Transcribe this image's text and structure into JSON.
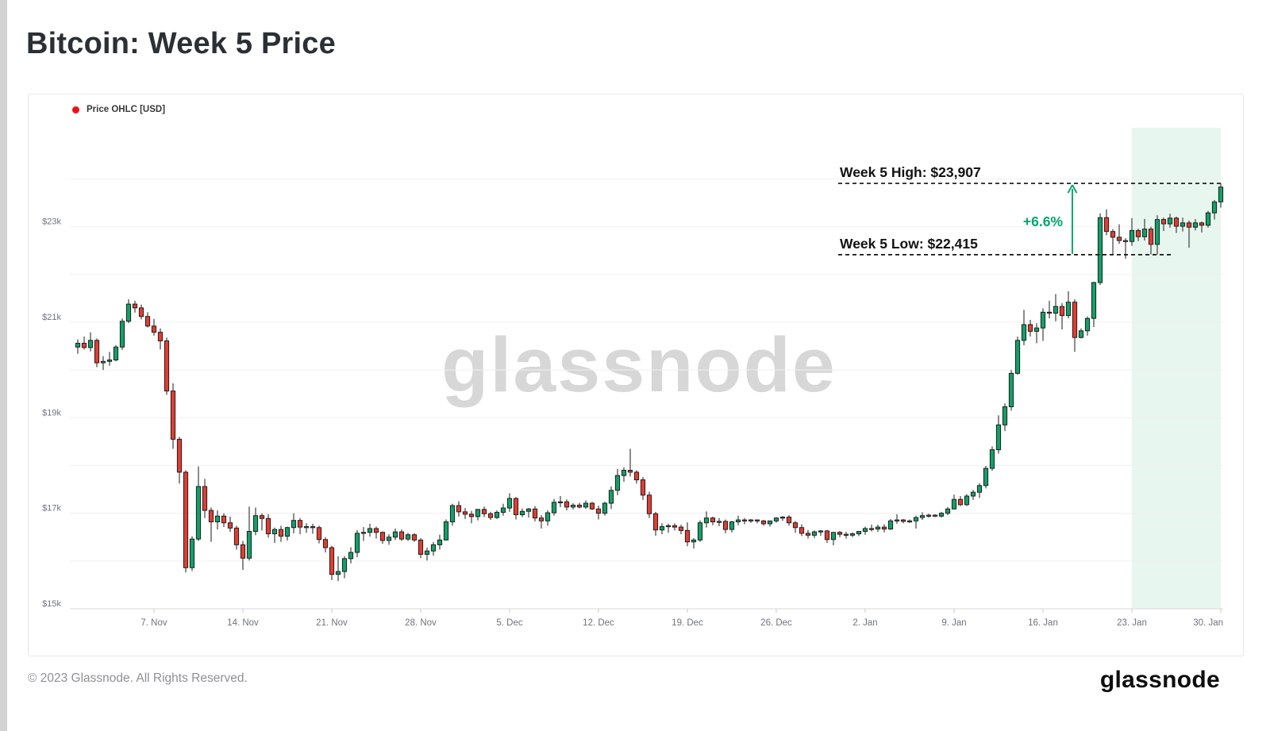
{
  "page": {
    "title": "Bitcoin: Week 5 Price",
    "watermark": "glassnode",
    "footer_copyright": "© 2023 Glassnode. All Rights Reserved.",
    "footer_logo": "glassnode"
  },
  "legend": {
    "label": "Price OHLC [USD]",
    "dot_color": "#ee1111"
  },
  "colors": {
    "up": "#10a168",
    "down": "#e53b30",
    "body_stroke": "#1f1f1f",
    "wick": "#2e2e2e",
    "band": "#e7f6ee",
    "grid": "#f0f0f0",
    "axis": "#d9d9d9",
    "tick": "#c9c9c9",
    "axis_text": "#6e737e",
    "annotation_text": "#121212",
    "accent_green": "#00a76b",
    "watermark": "#d7d7d7"
  },
  "chart_data": {
    "type": "candlestick",
    "title": "Bitcoin: Week 5 Price",
    "series_name": "Price OHLC [USD]",
    "x_start": "1. Nov",
    "x_end": "30. Jan",
    "candle_interval": "12h",
    "ylim": [
      15000,
      25080
    ],
    "grid": "horizontal, every $1k",
    "y_ticks": [
      {
        "label": "$15k",
        "value": 15000
      },
      {
        "label": "$17k",
        "value": 17000
      },
      {
        "label": "$19k",
        "value": 19000
      },
      {
        "label": "$21k",
        "value": 21000
      },
      {
        "label": "$23k",
        "value": 23000
      }
    ],
    "x_ticks": [
      {
        "label": "7. Nov",
        "index": 12
      },
      {
        "label": "14. Nov",
        "index": 26
      },
      {
        "label": "21. Nov",
        "index": 40
      },
      {
        "label": "28. Nov",
        "index": 54
      },
      {
        "label": "5. Dec",
        "index": 68
      },
      {
        "label": "12. Dec",
        "index": 82
      },
      {
        "label": "19. Dec",
        "index": 96
      },
      {
        "label": "26. Dec",
        "index": 110
      },
      {
        "label": "2. Jan",
        "index": 124
      },
      {
        "label": "9. Jan",
        "index": 138
      },
      {
        "label": "16. Jan",
        "index": 152
      },
      {
        "label": "23. Jan",
        "index": 166
      },
      {
        "label": "30. Jan",
        "index": 180
      }
    ],
    "highlight_region": {
      "label": "Week 5",
      "from_index": 166,
      "to_index": 180
    },
    "annotations": {
      "high_label": "Week 5 High: $23,907",
      "high_value": 23907,
      "low_label": "Week 5 Low: $22,415",
      "low_value": 22415,
      "change_label": "+6.6%"
    },
    "candles": [
      [
        20480,
        20640,
        20340,
        20560
      ],
      [
        20560,
        20700,
        20430,
        20470
      ],
      [
        20470,
        20790,
        20390,
        20620
      ],
      [
        20620,
        20660,
        20060,
        20150
      ],
      [
        20150,
        20290,
        20000,
        20180
      ],
      [
        20180,
        20380,
        20090,
        20210
      ],
      [
        20210,
        20520,
        20180,
        20480
      ],
      [
        20480,
        21080,
        20420,
        21020
      ],
      [
        21020,
        21480,
        20980,
        21380
      ],
      [
        21380,
        21450,
        21200,
        21300
      ],
      [
        21300,
        21370,
        21060,
        21120
      ],
      [
        21120,
        21210,
        20890,
        20920
      ],
      [
        20920,
        21070,
        20720,
        20790
      ],
      [
        20790,
        20870,
        20430,
        20610
      ],
      [
        20610,
        20680,
        19480,
        19560
      ],
      [
        19560,
        19720,
        18350,
        18550
      ],
      [
        18550,
        18600,
        17620,
        17860
      ],
      [
        17860,
        17900,
        15760,
        15860
      ],
      [
        15860,
        16520,
        15790,
        16460
      ],
      [
        16460,
        17980,
        16420,
        17560
      ],
      [
        17560,
        17720,
        16900,
        17060
      ],
      [
        17060,
        17120,
        16400,
        16820
      ],
      [
        16820,
        17060,
        16660,
        16940
      ],
      [
        16940,
        17000,
        16710,
        16800
      ],
      [
        16800,
        16930,
        16610,
        16690
      ],
      [
        16690,
        16740,
        16240,
        16340
      ],
      [
        16340,
        16420,
        15815,
        16060
      ],
      [
        16060,
        17140,
        16010,
        16620
      ],
      [
        16620,
        17120,
        16540,
        16950
      ],
      [
        16950,
        17000,
        16640,
        16890
      ],
      [
        16890,
        16980,
        16490,
        16570
      ],
      [
        16570,
        16700,
        16380,
        16660
      ],
      [
        16660,
        16740,
        16400,
        16520
      ],
      [
        16520,
        16720,
        16430,
        16700
      ],
      [
        16700,
        17000,
        16580,
        16850
      ],
      [
        16850,
        16900,
        16560,
        16710
      ],
      [
        16710,
        16790,
        16590,
        16720
      ],
      [
        16720,
        16780,
        16570,
        16700
      ],
      [
        16700,
        16740,
        16370,
        16450
      ],
      [
        16450,
        16500,
        16180,
        16280
      ],
      [
        16280,
        16320,
        15600,
        15720
      ],
      [
        15720,
        16100,
        15580,
        15780
      ],
      [
        15780,
        16100,
        15640,
        16050
      ],
      [
        16050,
        16290,
        15950,
        16180
      ],
      [
        16180,
        16650,
        16080,
        16580
      ],
      [
        16580,
        16710,
        16420,
        16600
      ],
      [
        16600,
        16780,
        16510,
        16680
      ],
      [
        16680,
        16720,
        16470,
        16600
      ],
      [
        16600,
        16620,
        16360,
        16430
      ],
      [
        16430,
        16560,
        16340,
        16500
      ],
      [
        16500,
        16680,
        16440,
        16610
      ],
      [
        16610,
        16660,
        16420,
        16460
      ],
      [
        16460,
        16590,
        16420,
        16550
      ],
      [
        16550,
        16580,
        16400,
        16440
      ],
      [
        16440,
        16480,
        16060,
        16140
      ],
      [
        16140,
        16280,
        16010,
        16210
      ],
      [
        16210,
        16400,
        16110,
        16340
      ],
      [
        16340,
        16550,
        16240,
        16440
      ],
      [
        16440,
        16870,
        16430,
        16820
      ],
      [
        16820,
        17200,
        16740,
        17160
      ],
      [
        17160,
        17250,
        16930,
        17030
      ],
      [
        17030,
        17110,
        16880,
        16980
      ],
      [
        16980,
        17050,
        16790,
        16930
      ],
      [
        16930,
        17090,
        16850,
        17080
      ],
      [
        17080,
        17140,
        16920,
        16990
      ],
      [
        16990,
        17030,
        16860,
        16910
      ],
      [
        16910,
        17060,
        16880,
        17020
      ],
      [
        17020,
        17200,
        16950,
        17110
      ],
      [
        17110,
        17420,
        17030,
        17310
      ],
      [
        17310,
        17340,
        16870,
        16970
      ],
      [
        16970,
        17100,
        16920,
        17040
      ],
      [
        17040,
        17110,
        16910,
        17090
      ],
      [
        17090,
        17150,
        16830,
        16900
      ],
      [
        16900,
        16960,
        16680,
        16840
      ],
      [
        16840,
        17060,
        16740,
        17010
      ],
      [
        17010,
        17300,
        16950,
        17230
      ],
      [
        17230,
        17360,
        17130,
        17240
      ],
      [
        17240,
        17290,
        17060,
        17130
      ],
      [
        17130,
        17210,
        17080,
        17170
      ],
      [
        17170,
        17220,
        17100,
        17130
      ],
      [
        17130,
        17270,
        17090,
        17210
      ],
      [
        17210,
        17240,
        17070,
        17090
      ],
      [
        17090,
        17160,
        16870,
        17000
      ],
      [
        17000,
        17240,
        16950,
        17210
      ],
      [
        17210,
        17560,
        17090,
        17480
      ],
      [
        17480,
        17930,
        17380,
        17790
      ],
      [
        17790,
        17960,
        17660,
        17900
      ],
      [
        17900,
        18350,
        17770,
        17860
      ],
      [
        17860,
        17900,
        17620,
        17700
      ],
      [
        17700,
        17760,
        17280,
        17380
      ],
      [
        17380,
        17450,
        16900,
        16990
      ],
      [
        16990,
        17030,
        16530,
        16650
      ],
      [
        16650,
        16790,
        16560,
        16720
      ],
      [
        16720,
        16780,
        16590,
        16740
      ],
      [
        16740,
        16790,
        16640,
        16710
      ],
      [
        16710,
        16760,
        16560,
        16640
      ],
      [
        16640,
        16810,
        16310,
        16400
      ],
      [
        16400,
        16480,
        16260,
        16440
      ],
      [
        16440,
        16850,
        16400,
        16800
      ],
      [
        16800,
        17040,
        16700,
        16900
      ],
      [
        16900,
        16930,
        16750,
        16820
      ],
      [
        16820,
        16900,
        16730,
        16830
      ],
      [
        16830,
        16870,
        16580,
        16660
      ],
      [
        16660,
        16840,
        16600,
        16820
      ],
      [
        16820,
        16950,
        16750,
        16860
      ],
      [
        16860,
        16900,
        16770,
        16840
      ],
      [
        16840,
        16880,
        16800,
        16860
      ],
      [
        16860,
        16870,
        16790,
        16840
      ],
      [
        16840,
        16860,
        16740,
        16780
      ],
      [
        16780,
        16830,
        16720,
        16840
      ],
      [
        16840,
        16920,
        16800,
        16900
      ],
      [
        16900,
        16940,
        16840,
        16920
      ],
      [
        16920,
        16960,
        16740,
        16800
      ],
      [
        16800,
        16840,
        16590,
        16700
      ],
      [
        16700,
        16770,
        16520,
        16580
      ],
      [
        16580,
        16650,
        16470,
        16540
      ],
      [
        16540,
        16640,
        16480,
        16610
      ],
      [
        16610,
        16650,
        16530,
        16630
      ],
      [
        16630,
        16650,
        16380,
        16450
      ],
      [
        16450,
        16560,
        16330,
        16600
      ],
      [
        16600,
        16630,
        16500,
        16560
      ],
      [
        16560,
        16610,
        16470,
        16540
      ],
      [
        16540,
        16600,
        16500,
        16570
      ],
      [
        16570,
        16620,
        16520,
        16620
      ],
      [
        16620,
        16720,
        16550,
        16680
      ],
      [
        16680,
        16760,
        16620,
        16670
      ],
      [
        16670,
        16760,
        16610,
        16710
      ],
      [
        16710,
        16770,
        16600,
        16670
      ],
      [
        16670,
        16880,
        16650,
        16840
      ],
      [
        16840,
        16980,
        16780,
        16860
      ],
      [
        16860,
        16880,
        16790,
        16830
      ],
      [
        16830,
        16870,
        16800,
        16840
      ],
      [
        16840,
        16950,
        16680,
        16910
      ],
      [
        16910,
        17020,
        16860,
        16950
      ],
      [
        16950,
        16990,
        16910,
        16960
      ],
      [
        16960,
        16980,
        16920,
        16940
      ],
      [
        16940,
        17030,
        16910,
        17000
      ],
      [
        17000,
        17130,
        16960,
        17090
      ],
      [
        17090,
        17390,
        17080,
        17290
      ],
      [
        17290,
        17360,
        17150,
        17180
      ],
      [
        17180,
        17400,
        17150,
        17360
      ],
      [
        17360,
        17490,
        17280,
        17440
      ],
      [
        17440,
        17630,
        17320,
        17580
      ],
      [
        17580,
        17990,
        17520,
        17940
      ],
      [
        17940,
        18400,
        17890,
        18330
      ],
      [
        18330,
        19050,
        18250,
        18850
      ],
      [
        18850,
        19300,
        18720,
        19230
      ],
      [
        19230,
        20000,
        19150,
        19930
      ],
      [
        19930,
        20700,
        19900,
        20620
      ],
      [
        20620,
        21260,
        20520,
        20950
      ],
      [
        20950,
        21050,
        20700,
        20810
      ],
      [
        20810,
        20980,
        20560,
        20880
      ],
      [
        20880,
        21290,
        20610,
        21210
      ],
      [
        21210,
        21450,
        21080,
        21190
      ],
      [
        21190,
        21590,
        21020,
        21330
      ],
      [
        21330,
        21400,
        20850,
        21140
      ],
      [
        21140,
        21650,
        21080,
        21420
      ],
      [
        21420,
        21480,
        20380,
        20680
      ],
      [
        20680,
        20870,
        20660,
        20820
      ],
      [
        20820,
        21120,
        20720,
        21080
      ],
      [
        21080,
        21850,
        20900,
        21830
      ],
      [
        21830,
        23280,
        21780,
        23190
      ],
      [
        23190,
        23360,
        22820,
        22900
      ],
      [
        22900,
        22950,
        22430,
        22780
      ],
      [
        22780,
        23050,
        22640,
        22710
      ],
      [
        22710,
        22760,
        22330,
        22690
      ],
      [
        22690,
        23180,
        22600,
        22920
      ],
      [
        22920,
        22960,
        22700,
        22790
      ],
      [
        22790,
        23160,
        22710,
        22950
      ],
      [
        22950,
        23000,
        22420,
        22630
      ],
      [
        22630,
        23240,
        22415,
        23150
      ],
      [
        23150,
        23190,
        22910,
        23060
      ],
      [
        23060,
        23270,
        22980,
        23180
      ],
      [
        23180,
        23210,
        22870,
        23010
      ],
      [
        23010,
        23190,
        22900,
        23080
      ],
      [
        23080,
        23130,
        22560,
        22990
      ],
      [
        22990,
        23160,
        22920,
        23080
      ],
      [
        23080,
        23110,
        22880,
        23030
      ],
      [
        23030,
        23330,
        22980,
        23290
      ],
      [
        23290,
        23560,
        23150,
        23520
      ],
      [
        23520,
        23907,
        23400,
        23830
      ]
    ]
  }
}
